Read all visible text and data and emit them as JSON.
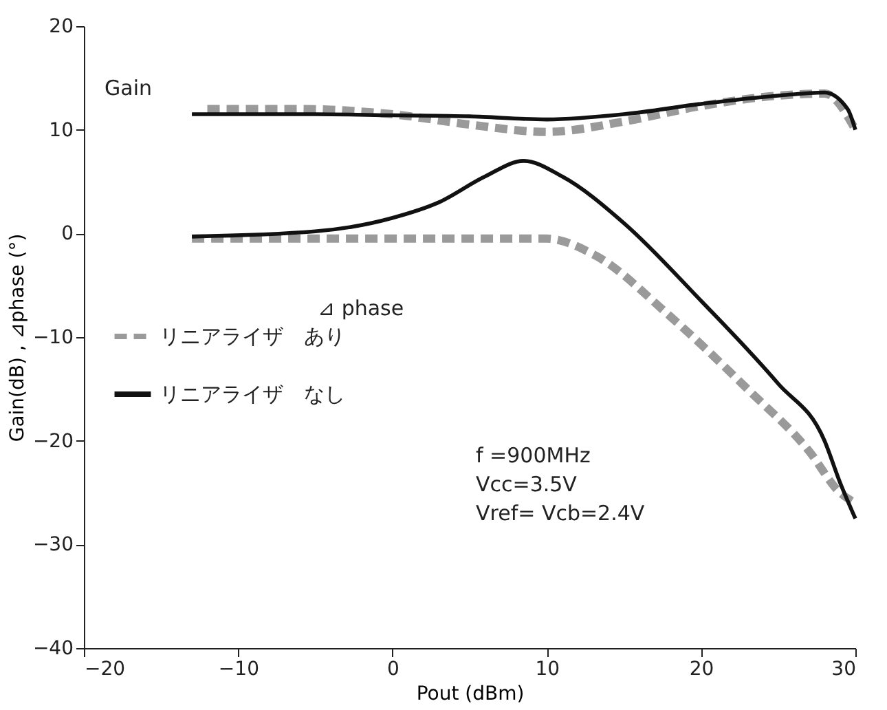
{
  "chart_data": {
    "type": "line",
    "xlabel": "Pout (dBm)",
    "ylabel": "Gain(dB) , ⊿phase (°)",
    "xlim": [
      -20,
      30
    ],
    "xticks": [
      -20,
      -10,
      0,
      10,
      20,
      30
    ],
    "ylim": [
      -40,
      20
    ],
    "yticks": [
      -40,
      -30,
      -20,
      -10,
      0,
      10,
      20
    ],
    "grid": false,
    "legend": "left",
    "marker": "none",
    "series": [
      {
        "name": "リニアライザ　なし",
        "color": "#111111",
        "line_style": "solid",
        "x": [
          -13,
          -5,
          0,
          5,
          10,
          15,
          20,
          25,
          28,
          29.5,
          30
        ],
        "values": [
          11.5,
          11.5,
          11.4,
          11.3,
          11,
          11.5,
          12.5,
          13.3,
          13.6,
          12,
          10
        ]
      },
      {
        "name": "リニアライザ　あり",
        "color": "#9a9a9a",
        "line_style": "dashed",
        "x": [
          -12,
          -6,
          0,
          5,
          10,
          15,
          20,
          25,
          28,
          30
        ],
        "values": [
          12,
          12,
          11.5,
          10.5,
          9.8,
          10.8,
          12.3,
          13.3,
          13.5,
          10
        ]
      },
      {
        "color": "#111111",
        "line_style": "solid",
        "x": [
          -13,
          -5,
          0,
          3,
          6,
          8.5,
          11,
          15,
          20,
          25,
          28,
          29,
          30
        ],
        "values": [
          -0.3,
          0.2,
          1.5,
          3,
          5.5,
          7,
          5.5,
          1,
          -6.5,
          -14.5,
          -20,
          -24,
          -27.5
        ]
      },
      {
        "color": "#9a9a9a",
        "line_style": "dashed",
        "x": [
          -13,
          -5,
          0,
          5,
          10,
          13,
          18,
          23,
          27,
          29,
          30
        ],
        "values": [
          -0.5,
          -0.5,
          -0.5,
          -0.5,
          -0.5,
          -2,
          -8,
          -15,
          -21,
          -25,
          -26
        ]
      }
    ],
    "annotations": [
      "Gain",
      "⊿ phase",
      "f =900MHz",
      "Vcc=3.5V",
      "Vref= Vcb=2.4V"
    ]
  }
}
